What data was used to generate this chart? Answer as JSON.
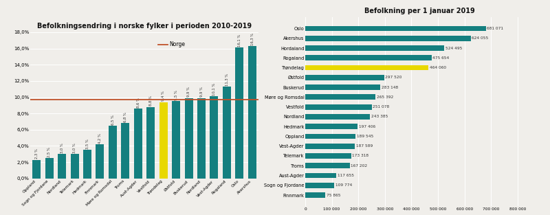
{
  "left_title": "Befolkningsendring i norske fylker i perioden 2010-2019",
  "right_title": "Befolkning per 1 januar 2019",
  "norge_line": 9.7,
  "norge_label": "Norge",
  "bar_labels_x": [
    "Oppland",
    "Sogn og Fjordane",
    "Nordland",
    "Telemark",
    "Hedmark",
    "Finnmark",
    "Møre og Romsdal",
    "Troms",
    "Aust-Agder",
    "Vestfold",
    "Trøndelag",
    "Østfold",
    "Buskerud",
    "Nordland",
    "Vest-Agder",
    "Rogaland",
    "Oslo",
    "Akershus"
  ],
  "bar_values": [
    2.3,
    2.5,
    3.0,
    3.0,
    3.5,
    4.2,
    6.5,
    6.8,
    8.6,
    8.8,
    9.4,
    9.5,
    9.9,
    9.9,
    10.1,
    11.3,
    16.1,
    16.3
  ],
  "bar_value_labels": [
    "2,3 %",
    "2,5 %",
    "3,0 %",
    "3,0 %",
    "3,5 %",
    "4,2 %",
    "6,5 %",
    "6,8 %",
    "8,6 %",
    "8,8 %",
    "9,4 %",
    "9,5 %",
    "9,9 %",
    "9,9 %",
    "10,1 %",
    "11,3 %",
    "16,1 %",
    "16,3 %"
  ],
  "bar_colors": [
    "#147f7f",
    "#147f7f",
    "#147f7f",
    "#147f7f",
    "#147f7f",
    "#147f7f",
    "#147f7f",
    "#147f7f",
    "#147f7f",
    "#147f7f",
    "#e8d800",
    "#147f7f",
    "#147f7f",
    "#147f7f",
    "#147f7f",
    "#147f7f",
    "#147f7f",
    "#147f7f"
  ],
  "ylim": [
    0,
    18
  ],
  "yticks": [
    0,
    2,
    4,
    6,
    8,
    10,
    12,
    14,
    16,
    18
  ],
  "ytick_labels": [
    "0,0%",
    "2,0%",
    "4,0%",
    "6,0%",
    "8,0%",
    "10,0%",
    "12,0%",
    "14,0%",
    "16,0%",
    "18,0%"
  ],
  "right_categories": [
    "Oslo",
    "Akershus",
    "Hordaland",
    "Rogaland",
    "Trøndelag",
    "Østfold",
    "Buskerud",
    "Møre og Romsdal",
    "Vestfold",
    "Nordland",
    "Hedmark",
    "Oppland",
    "Vest-Agder",
    "Telemark",
    "Troms",
    "Aust-Agder",
    "Sogn og Fjordane",
    "Finnmark"
  ],
  "right_values": [
    681071,
    624055,
    524495,
    475654,
    464060,
    297520,
    283148,
    265392,
    251078,
    243385,
    197406,
    189545,
    187589,
    173318,
    167202,
    117655,
    109774,
    75865
  ],
  "right_value_labels": [
    "681 071",
    "624 055",
    "524 495",
    "475 654",
    "464 060",
    "297 520",
    "283 148",
    "265 392",
    "251 078",
    "243 385",
    "197 406",
    "189 545",
    "187 589",
    "173 318",
    "167 202",
    "117 655",
    "109 774",
    "75 865"
  ],
  "right_colors": [
    "#147f7f",
    "#147f7f",
    "#147f7f",
    "#147f7f",
    "#e8d800",
    "#147f7f",
    "#147f7f",
    "#147f7f",
    "#147f7f",
    "#147f7f",
    "#147f7f",
    "#147f7f",
    "#147f7f",
    "#147f7f",
    "#147f7f",
    "#147f7f",
    "#147f7f",
    "#147f7f"
  ],
  "orange_color": "#c0522a",
  "bg_color": "#f0eeea"
}
